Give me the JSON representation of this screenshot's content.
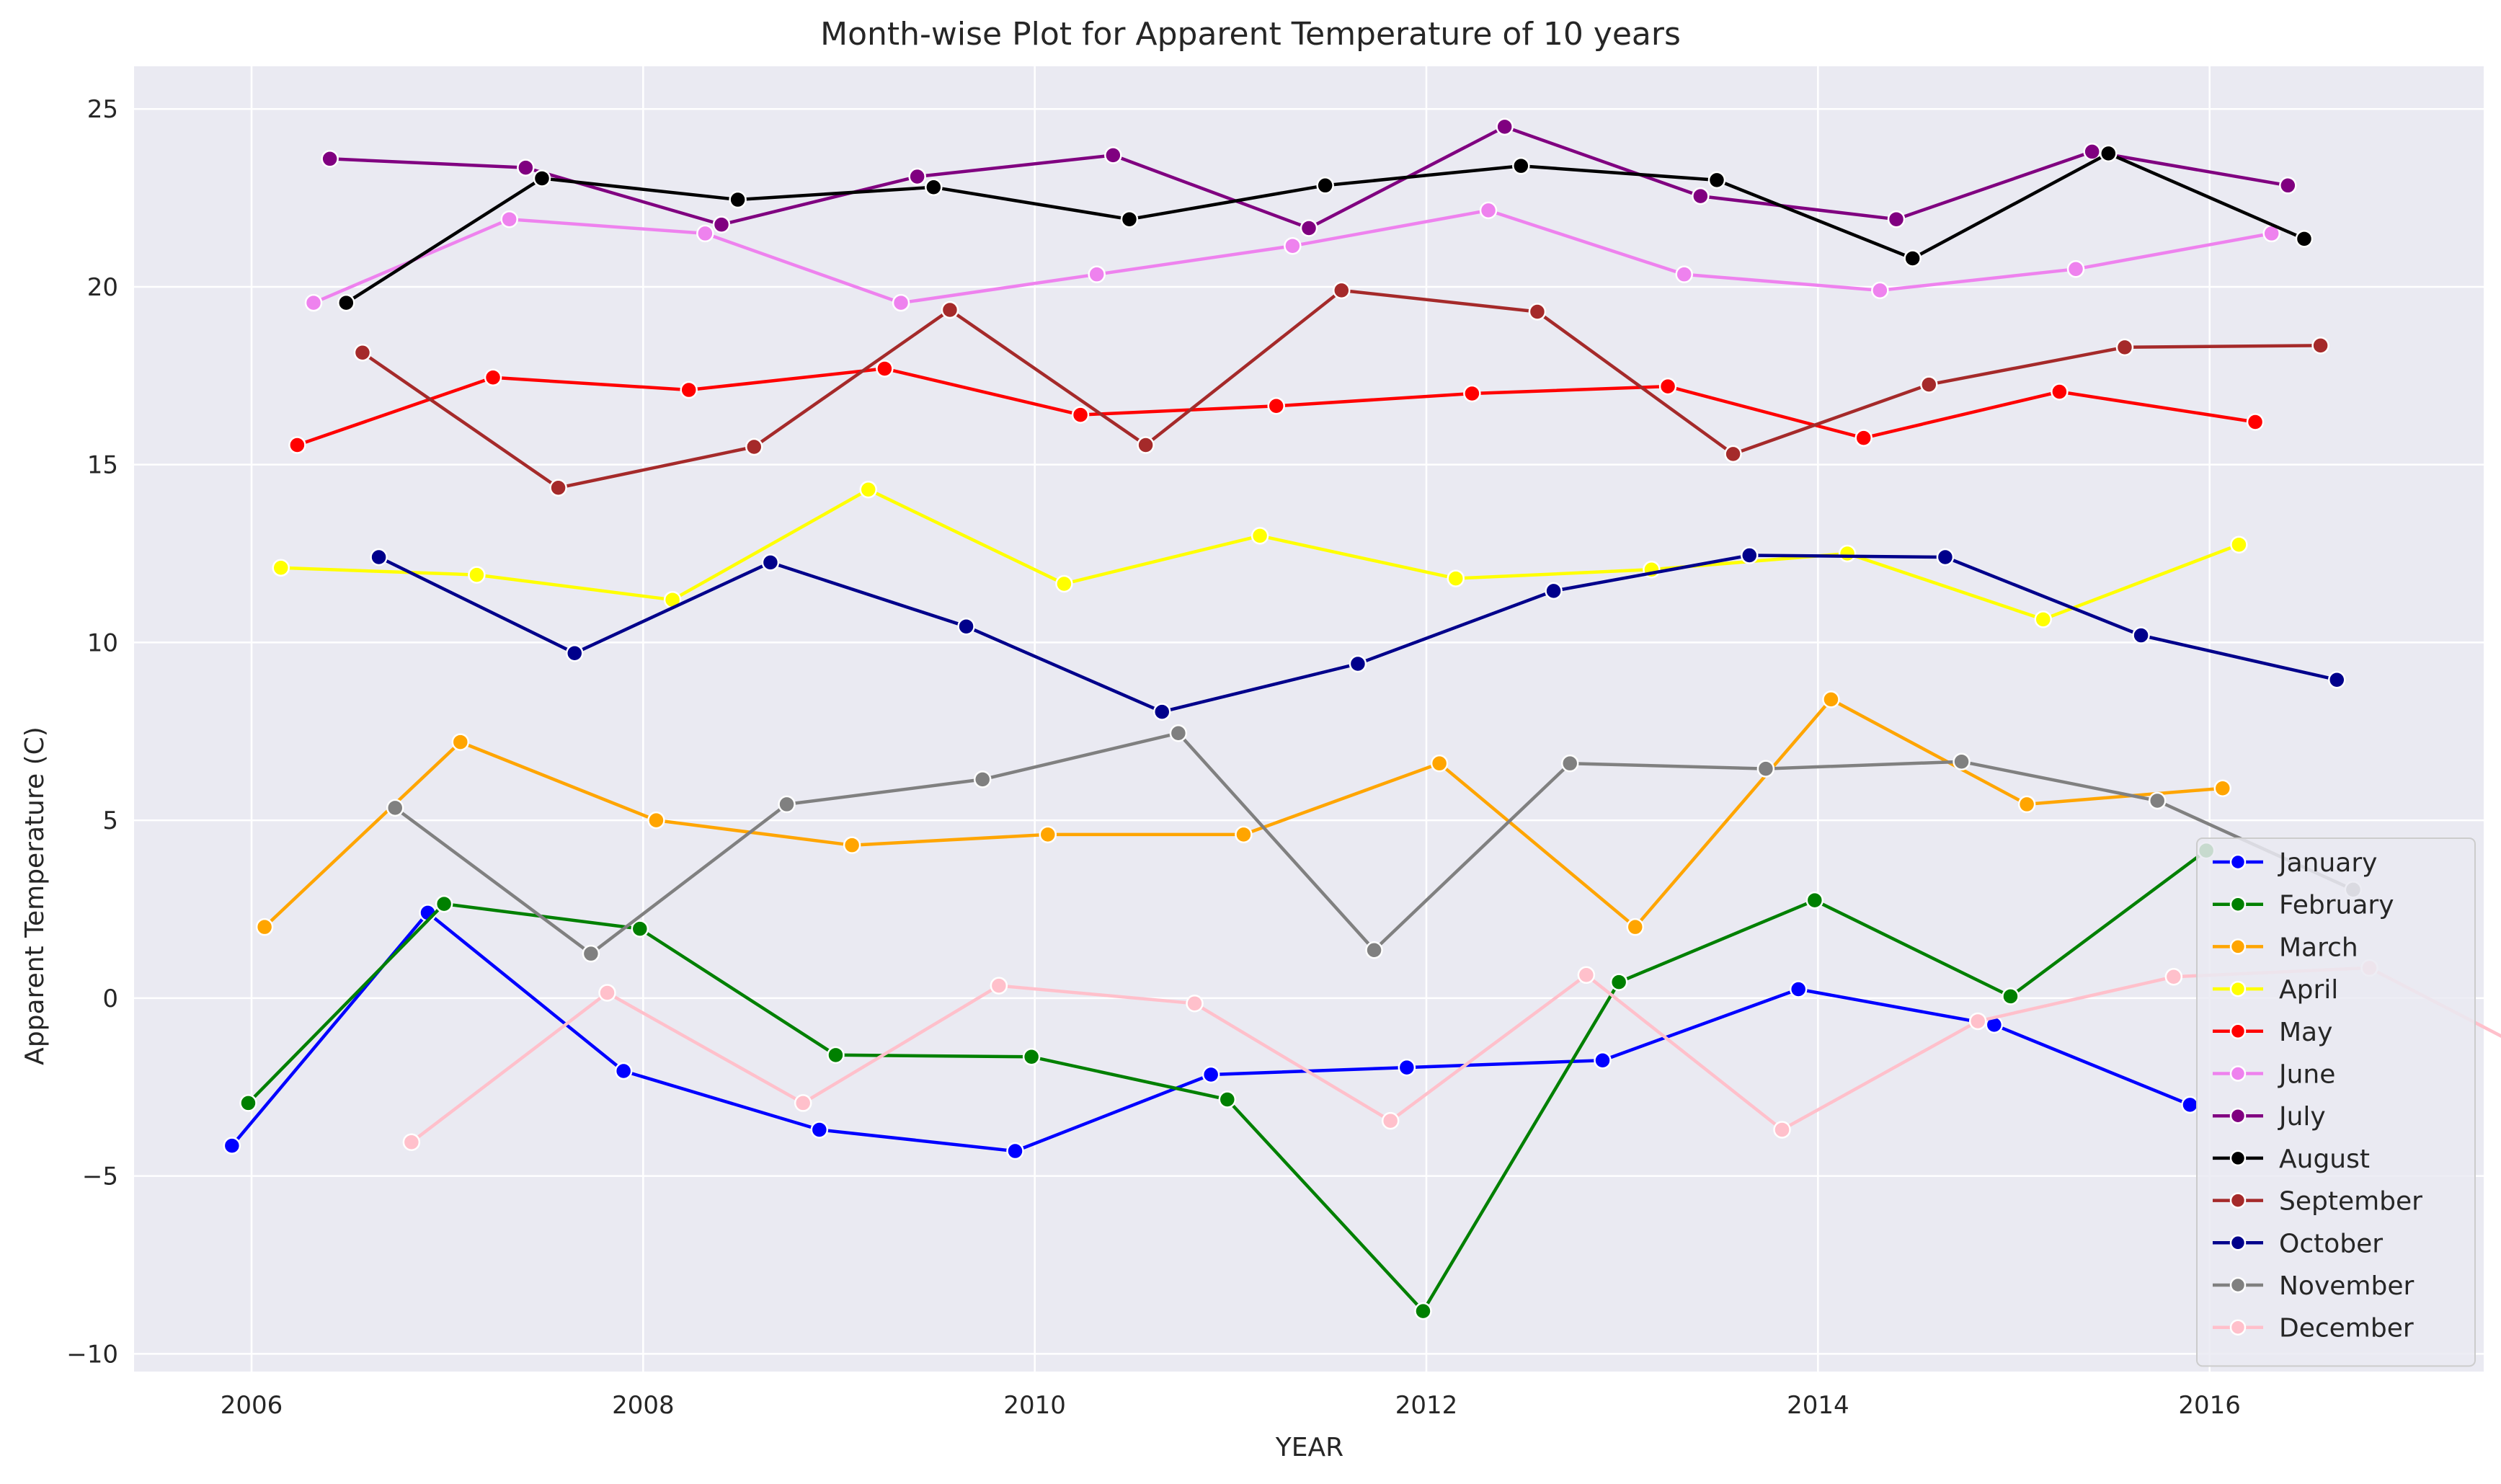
{
  "chart_data": {
    "type": "line",
    "title": "Month-wise Plot for Apparent Temperature of 10 years",
    "xlabel": "YEAR",
    "ylabel": "Apparent Temperature (C)",
    "xlim": [
      2005.4,
      2017.4
    ],
    "ylim": [
      -10.5,
      26.2
    ],
    "xticks": [
      2006,
      2008,
      2010,
      2012,
      2014,
      2016
    ],
    "yticks": [
      -10,
      -5,
      0,
      5,
      10,
      15,
      20,
      25
    ],
    "grid": true,
    "legend_position": "lower-right",
    "background_color": "#eaeaf2",
    "grid_color": "#ffffff",
    "x": [
      2006,
      2007,
      2008,
      2009,
      2010,
      2011,
      2012,
      2013,
      2014,
      2015,
      2016,
      2017
    ],
    "series": [
      {
        "name": "January",
        "color": "#0000ff",
        "values": [
          -4.15,
          2.4,
          -2.05,
          -3.7,
          -4.3,
          -2.15,
          -1.95,
          -1.75,
          0.25,
          -0.75,
          -3.0,
          null
        ]
      },
      {
        "name": "February",
        "color": "#008000",
        "values": [
          -2.95,
          2.65,
          1.95,
          -1.6,
          -1.65,
          -2.85,
          -8.8,
          0.45,
          2.75,
          0.05,
          4.15,
          null
        ]
      },
      {
        "name": "March",
        "color": "#ffa500",
        "values": [
          2.0,
          7.2,
          5.0,
          4.3,
          4.6,
          4.6,
          6.6,
          2.0,
          8.4,
          5.45,
          5.9,
          null
        ]
      },
      {
        "name": "April",
        "color": "#ffff00",
        "values": [
          12.1,
          11.9,
          11.2,
          14.3,
          11.65,
          13.0,
          11.8,
          12.05,
          12.5,
          10.65,
          12.75,
          null
        ]
      },
      {
        "name": "May",
        "color": "#ff0000",
        "values": [
          15.55,
          17.45,
          17.1,
          17.7,
          16.4,
          16.65,
          17.0,
          17.2,
          15.75,
          17.05,
          16.2,
          null
        ]
      },
      {
        "name": "June",
        "color": "#ee82ee",
        "values": [
          19.55,
          21.9,
          21.5,
          19.55,
          20.35,
          21.15,
          22.15,
          20.35,
          19.9,
          20.5,
          21.5,
          null
        ]
      },
      {
        "name": "July",
        "color": "#800080",
        "values": [
          23.6,
          23.35,
          21.75,
          23.1,
          23.7,
          21.65,
          24.5,
          22.55,
          21.9,
          23.8,
          22.85,
          null
        ]
      },
      {
        "name": "August",
        "color": "#000000",
        "values": [
          19.55,
          23.05,
          22.45,
          22.8,
          21.9,
          22.85,
          23.4,
          23.0,
          20.8,
          23.75,
          21.35,
          null
        ]
      },
      {
        "name": "September",
        "color": "#a52a2a",
        "values": [
          18.15,
          14.35,
          15.5,
          19.35,
          15.55,
          19.9,
          19.3,
          15.3,
          17.25,
          18.3,
          18.35,
          null
        ]
      },
      {
        "name": "October",
        "color": "#00008b",
        "values": [
          12.4,
          9.7,
          12.25,
          10.45,
          8.05,
          9.4,
          11.45,
          12.45,
          12.4,
          10.2,
          8.95,
          null
        ]
      },
      {
        "name": "November",
        "color": "#808080",
        "values": [
          5.35,
          1.25,
          5.45,
          6.15,
          7.45,
          1.35,
          6.6,
          6.45,
          6.65,
          5.55,
          3.05,
          null
        ]
      },
      {
        "name": "December",
        "color": "#ffc0cb",
        "values": [
          -4.05,
          0.15,
          -2.95,
          0.35,
          -0.15,
          -3.45,
          0.65,
          -3.7,
          -0.65,
          0.6,
          0.85,
          -2.0
        ]
      }
    ]
  }
}
